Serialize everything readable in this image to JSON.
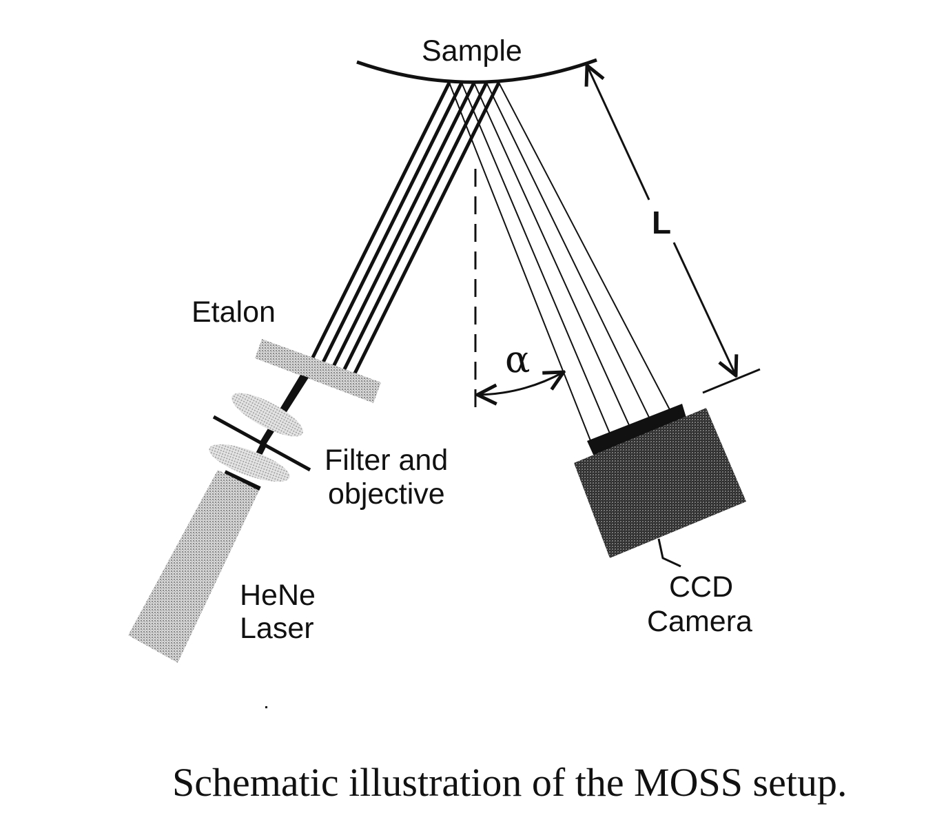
{
  "labels": {
    "sample": "Sample",
    "length": "L",
    "etalon": "Etalon",
    "angle": "α",
    "filter_line1": "Filter and",
    "filter_line2": "objective",
    "laser_line1": "HeNe",
    "laser_line2": "Laser",
    "camera_line1": "CCD",
    "camera_line2": "Camera"
  },
  "caption": "Schematic illustration of the MOSS setup.",
  "colors": {
    "ink": "#111111",
    "laser_body": "#a8a8a8",
    "camera_body": "#3a3a3a",
    "optics": "#bcbcbc"
  }
}
